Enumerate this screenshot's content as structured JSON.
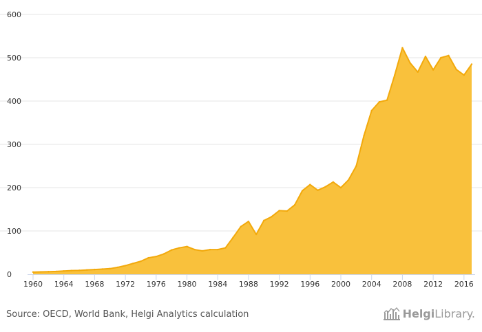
{
  "chart_data": {
    "type": "area",
    "title": "",
    "xlabel": "",
    "ylabel": "",
    "x": [
      1960,
      1961,
      1962,
      1963,
      1964,
      1965,
      1966,
      1967,
      1968,
      1969,
      1970,
      1971,
      1972,
      1973,
      1974,
      1975,
      1976,
      1977,
      1978,
      1979,
      1980,
      1981,
      1982,
      1983,
      1984,
      1985,
      1986,
      1987,
      1988,
      1989,
      1990,
      1991,
      1992,
      1993,
      1994,
      1995,
      1996,
      1997,
      1998,
      1999,
      2000,
      2001,
      2002,
      2003,
      2004,
      2005,
      2006,
      2007,
      2008,
      2009,
      2010,
      2011,
      2012,
      2013,
      2014,
      2015,
      2016,
      2017
    ],
    "values": [
      5,
      5.5,
      6,
      6.5,
      7.5,
      8.5,
      9,
      10,
      11,
      12,
      13,
      16,
      20,
      25,
      30,
      38,
      41,
      47,
      56,
      61,
      64,
      57,
      54,
      57,
      57,
      61,
      85,
      110,
      122,
      92,
      124,
      133,
      147,
      146,
      160,
      193,
      207,
      194,
      202,
      213,
      200,
      218,
      250,
      320,
      378,
      398,
      402,
      460,
      523,
      488,
      467,
      503,
      472,
      500,
      505,
      473,
      460,
      485
    ],
    "xlim": [
      1960,
      2017
    ],
    "ylim": [
      0,
      600
    ],
    "yticks": [
      0,
      100,
      200,
      300,
      400,
      500,
      600
    ],
    "xticks": [
      1960,
      1964,
      1968,
      1972,
      1976,
      1980,
      1984,
      1988,
      1992,
      1996,
      2000,
      2004,
      2008,
      2012,
      2016
    ],
    "grid": true,
    "legend": "none",
    "colors": {
      "fill": "#F9C13C",
      "line": "#F2A90C",
      "grid": "#E6E6E6",
      "axis": "#CCD6EB"
    }
  },
  "footer": {
    "source": "Source: OECD, World Bank, Helgi Analytics calculation",
    "brand_a": "Helgi",
    "brand_b": "Library."
  }
}
